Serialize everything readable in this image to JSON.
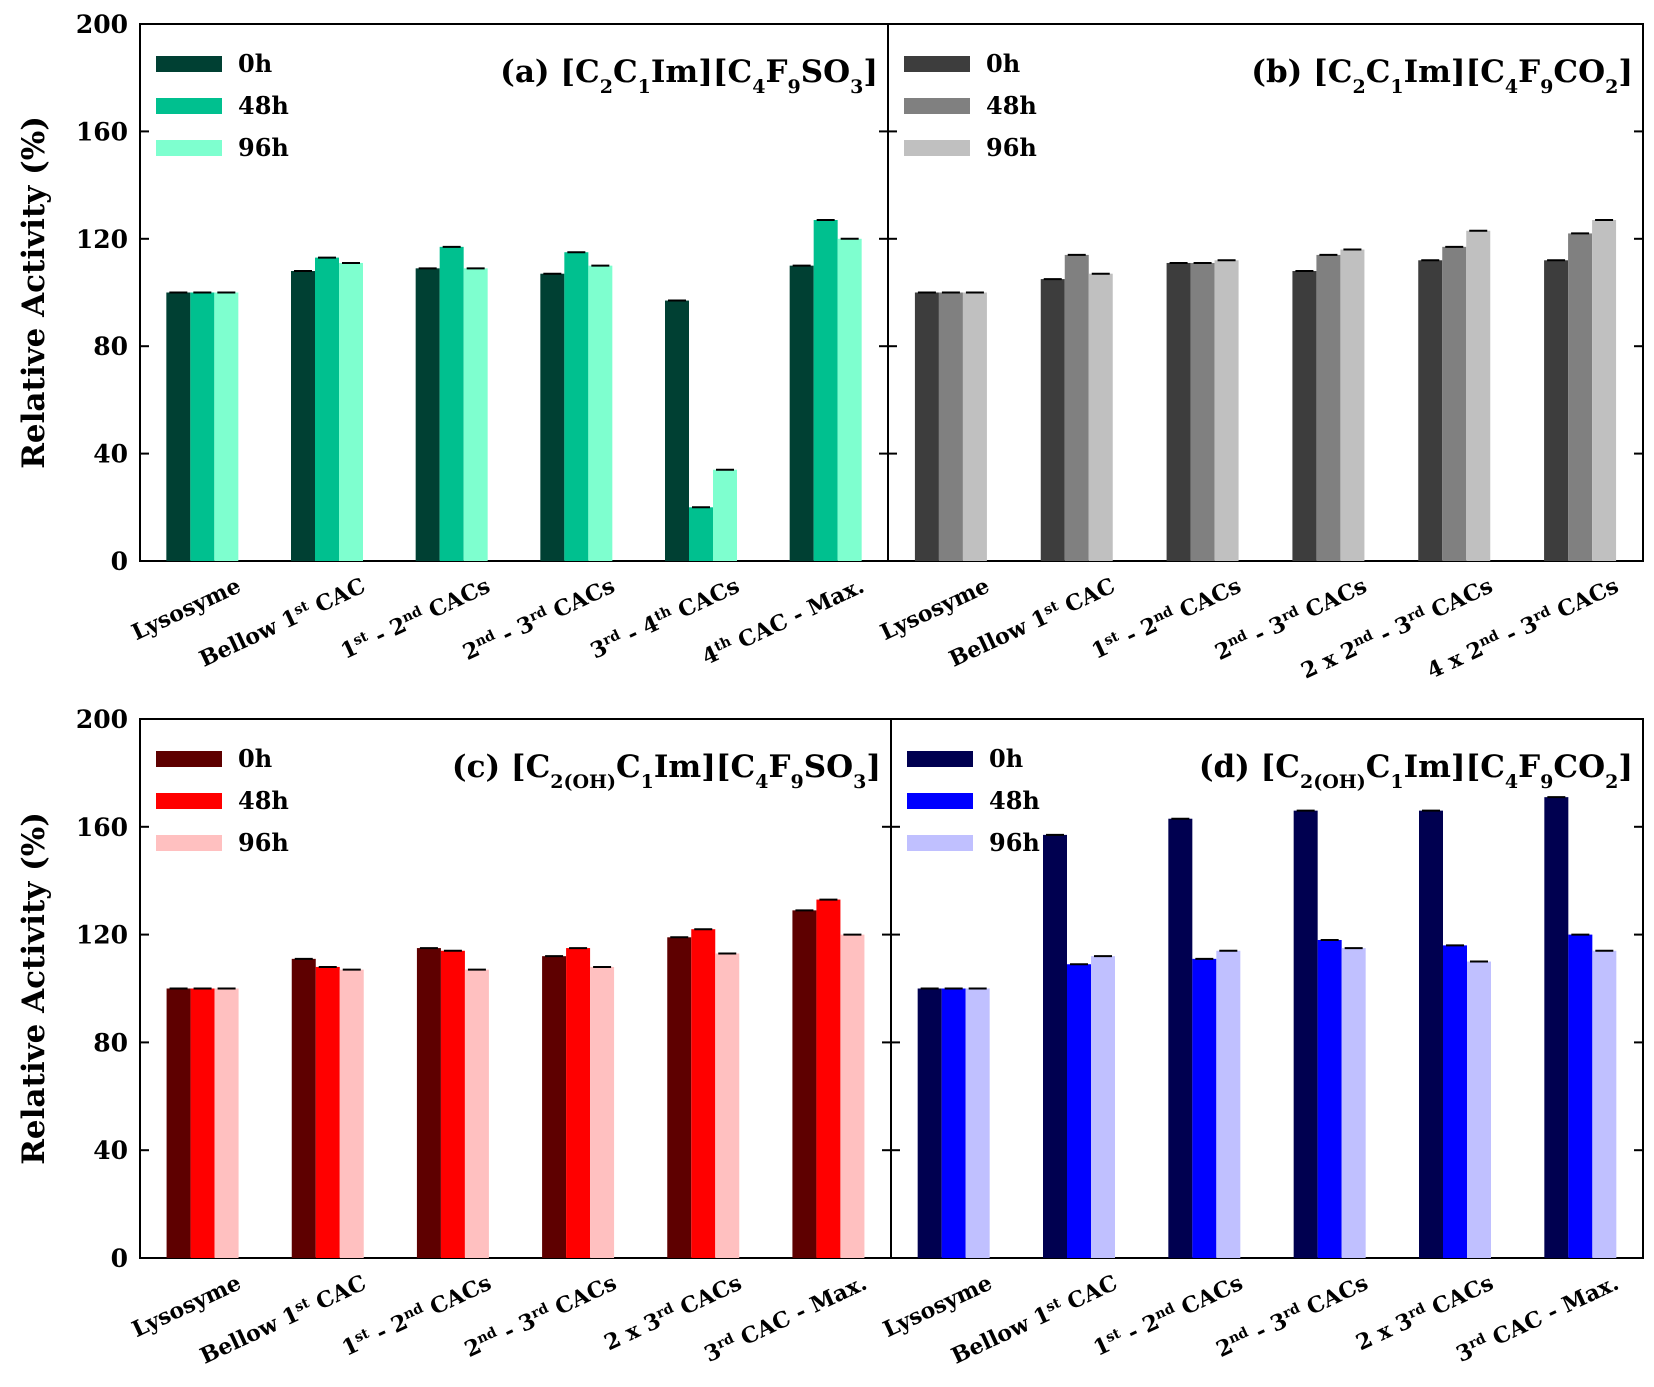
{
  "chart_data": [
    {
      "type": "bar",
      "panel": "a",
      "title": "(a) [C₂C₁Im][C₄F₉SO₃]",
      "title_parts": [
        "(a) [C",
        "2",
        "C",
        "1",
        "Im][C",
        "4",
        "F",
        "9",
        "SO",
        "3",
        "]"
      ],
      "ylabel": "Relative Activity (%)",
      "ylim": [
        0,
        200
      ],
      "yticks": [
        "0",
        "40",
        "80",
        "120",
        "160",
        "200"
      ],
      "categories": [
        [
          "Lysosyme"
        ],
        [
          "Bellow 1",
          "st",
          " CAC"
        ],
        [
          "1",
          "st",
          " - 2",
          "nd",
          " CACs"
        ],
        [
          "2",
          "nd",
          " - 3",
          "rd",
          " CACs"
        ],
        [
          "3",
          "rd",
          " - 4",
          "th",
          " CACs"
        ],
        [
          "4",
          "th",
          " CAC - Max."
        ]
      ],
      "series": [
        {
          "name": "0h",
          "color": "#004033",
          "values": [
            100,
            108,
            109,
            107,
            97,
            110
          ]
        },
        {
          "name": "48h",
          "color": "#00c08f",
          "values": [
            100,
            113,
            117,
            115,
            20,
            127
          ]
        },
        {
          "name": "96h",
          "color": "#7effcf",
          "values": [
            100,
            111,
            109,
            110,
            34,
            120
          ]
        }
      ]
    },
    {
      "type": "bar",
      "panel": "b",
      "title": "(b) [C₂C₁Im][C₄F₉CO₂]",
      "title_parts": [
        "(b) [C",
        "2",
        "C",
        "1",
        "Im][C",
        "4",
        "F",
        "9",
        "CO",
        "2",
        "]"
      ],
      "ylabel": "",
      "ylim": [
        0,
        200
      ],
      "yticks": [
        "0",
        "40",
        "80",
        "120",
        "160",
        "200"
      ],
      "categories": [
        [
          "Lysosyme"
        ],
        [
          "Bellow 1",
          "st",
          " CAC"
        ],
        [
          "1",
          "st",
          " - 2",
          "nd",
          " CACs"
        ],
        [
          "2",
          "nd",
          " - 3",
          "rd",
          " CACs"
        ],
        [
          "2 x 2",
          "nd",
          " - 3",
          "rd",
          " CACs"
        ],
        [
          "4 x 2",
          "nd",
          " - 3",
          "rd",
          " CACs"
        ]
      ],
      "series": [
        {
          "name": "0h",
          "color": "#3d3d3d",
          "values": [
            100,
            105,
            111,
            108,
            112,
            112
          ]
        },
        {
          "name": "48h",
          "color": "#808080",
          "values": [
            100,
            114,
            111,
            114,
            117,
            122
          ]
        },
        {
          "name": "96h",
          "color": "#c0c0c0",
          "values": [
            100,
            107,
            112,
            116,
            123,
            127
          ]
        }
      ]
    },
    {
      "type": "bar",
      "panel": "c",
      "title": "(c) [C₂₍OH₎C₁Im][C₄F₉SO₃]",
      "title_parts": [
        "(c) [C",
        "2(OH)",
        "C",
        "1",
        "Im][C",
        "4",
        "F",
        "9",
        "SO",
        "3",
        "]"
      ],
      "ylabel": "Relative Activity (%)",
      "ylim": [
        0,
        200
      ],
      "yticks": [
        "0",
        "40",
        "80",
        "120",
        "160",
        "200"
      ],
      "categories": [
        [
          "Lysosyme"
        ],
        [
          "Bellow 1",
          "st",
          " CAC"
        ],
        [
          "1",
          "st",
          " - 2",
          "nd",
          " CACs"
        ],
        [
          "2",
          "nd",
          " - 3",
          "rd",
          " CACs"
        ],
        [
          "2 x 3",
          "rd",
          " CACs"
        ],
        [
          "3",
          "rd",
          " CAC - Max."
        ]
      ],
      "series": [
        {
          "name": "0h",
          "color": "#5e0000",
          "values": [
            100,
            111,
            115,
            112,
            119,
            129
          ]
        },
        {
          "name": "48h",
          "color": "#ff0000",
          "values": [
            100,
            108,
            114,
            115,
            122,
            133
          ]
        },
        {
          "name": "96h",
          "color": "#ffc0c0",
          "values": [
            100,
            107,
            107,
            108,
            113,
            120
          ]
        }
      ]
    },
    {
      "type": "bar",
      "panel": "d",
      "title": "(d) [C₂₍OH₎C₁Im][C₄F₉CO₂]",
      "title_parts": [
        "(d) [C",
        "2(OH)",
        "C",
        "1",
        "Im][C",
        "4",
        "F",
        "9",
        "CO",
        "2",
        "]"
      ],
      "ylabel": "",
      "ylim": [
        0,
        200
      ],
      "yticks": [
        "0",
        "40",
        "80",
        "120",
        "160",
        "200"
      ],
      "categories": [
        [
          "Lysosyme"
        ],
        [
          "Bellow 1",
          "st",
          " CAC"
        ],
        [
          "1",
          "st",
          " - 2",
          "nd",
          " CACs"
        ],
        [
          "2",
          "nd",
          " - 3",
          "rd",
          " CACs"
        ],
        [
          "2 x 3",
          "rd",
          " CACs"
        ],
        [
          "3",
          "rd",
          " CAC - Max."
        ]
      ],
      "series": [
        {
          "name": "0h",
          "color": "#000050",
          "values": [
            100,
            157,
            163,
            166,
            166,
            171
          ]
        },
        {
          "name": "48h",
          "color": "#0000ff",
          "values": [
            100,
            109,
            111,
            118,
            116,
            120
          ]
        },
        {
          "name": "96h",
          "color": "#c0c0ff",
          "values": [
            100,
            112,
            114,
            115,
            110,
            114
          ]
        }
      ]
    }
  ]
}
